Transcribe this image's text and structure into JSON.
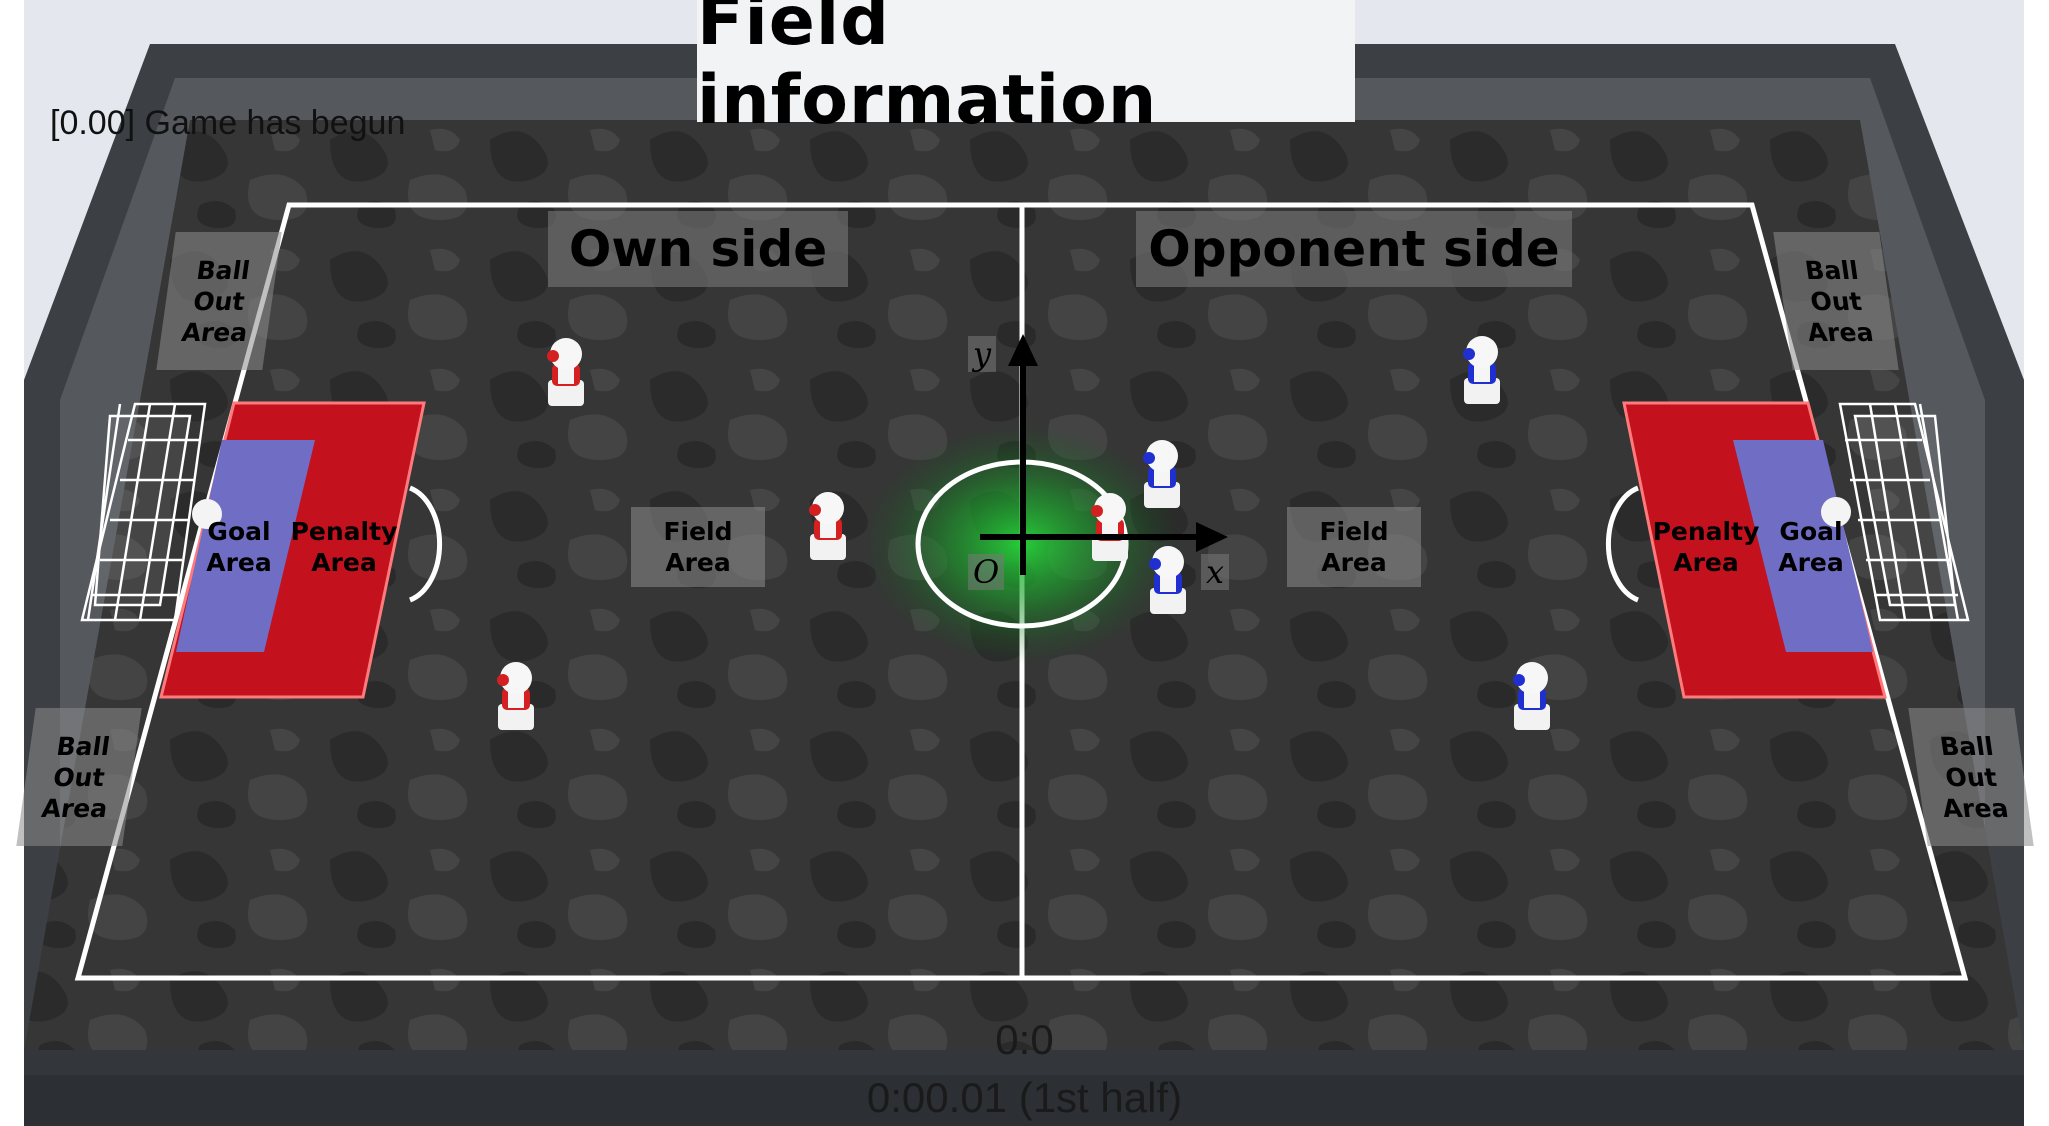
{
  "title": "Field information",
  "log_message": "[0.00] Game has begun",
  "sides": {
    "own": "Own side",
    "opponent": "Opponent side"
  },
  "areas": {
    "ball_out": "Ball\nOut\nArea",
    "goal": "Goal\nArea",
    "penalty": "Penalty\nArea",
    "field": "Field\nArea"
  },
  "axes": {
    "x": "x",
    "y": "y",
    "origin": "O"
  },
  "score": "0:0",
  "game_clock": "0:00.01 (1st half)",
  "teams": {
    "own_color": "#d42020",
    "opponent_color": "#2030d0"
  },
  "colors": {
    "penalty_area": "#c3111e",
    "goal_area": "#6f6ec4",
    "center_glow": "#20c030",
    "field_line": "#ffffff",
    "turf": "#333333"
  }
}
